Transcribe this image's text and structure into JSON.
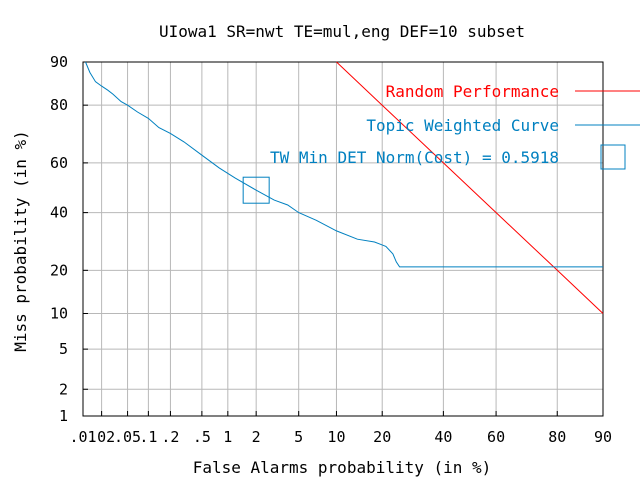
{
  "chart_data": {
    "type": "line",
    "title": "UIowa1 SR=nwt TE=mul,eng DEF=10 subset",
    "xlabel": "False Alarms probability (in %)",
    "ylabel": "Miss probability (in %)",
    "x_scale": "normal-deviate (probit)",
    "y_scale": "normal-deviate (probit)",
    "xlim": [
      0.01,
      90
    ],
    "ylim": [
      1,
      90
    ],
    "grid": true,
    "legend_position": "top-right, inside plot",
    "x_ticks": [
      {
        "value": 0.01,
        "label": ".01"
      },
      {
        "value": 0.02,
        "label": ".02"
      },
      {
        "value": 0.05,
        "label": ".05"
      },
      {
        "value": 0.1,
        "label": ".1"
      },
      {
        "value": 0.2,
        "label": ".2"
      },
      {
        "value": 0.5,
        "label": ".5"
      },
      {
        "value": 1,
        "label": "1"
      },
      {
        "value": 2,
        "label": "2"
      },
      {
        "value": 5,
        "label": "5"
      },
      {
        "value": 10,
        "label": "10"
      },
      {
        "value": 20,
        "label": "20"
      },
      {
        "value": 40,
        "label": "40"
      },
      {
        "value": 60,
        "label": "60"
      },
      {
        "value": 80,
        "label": "80"
      },
      {
        "value": 90,
        "label": "90"
      }
    ],
    "y_ticks": [
      {
        "value": 1,
        "label": "1"
      },
      {
        "value": 2,
        "label": "2"
      },
      {
        "value": 5,
        "label": "5"
      },
      {
        "value": 10,
        "label": "10"
      },
      {
        "value": 20,
        "label": "20"
      },
      {
        "value": 40,
        "label": "40"
      },
      {
        "value": 60,
        "label": "60"
      },
      {
        "value": 80,
        "label": "80"
      },
      {
        "value": 90,
        "label": "90"
      }
    ],
    "series": [
      {
        "name": "Random Performance",
        "color": "#ff0000",
        "points": [
          [
            10,
            90
          ],
          [
            20,
            80
          ],
          [
            40,
            60
          ],
          [
            60,
            40
          ],
          [
            80,
            20
          ],
          [
            90,
            10
          ]
        ]
      },
      {
        "name": "Topic Weighted Curve",
        "color": "#0080c0",
        "points": [
          [
            0.011,
            90
          ],
          [
            0.013,
            88
          ],
          [
            0.016,
            86
          ],
          [
            0.02,
            85
          ],
          [
            0.025,
            84
          ],
          [
            0.03,
            83
          ],
          [
            0.04,
            81
          ],
          [
            0.05,
            80
          ],
          [
            0.07,
            78
          ],
          [
            0.1,
            76
          ],
          [
            0.14,
            73
          ],
          [
            0.2,
            71
          ],
          [
            0.3,
            68
          ],
          [
            0.5,
            63
          ],
          [
            0.8,
            58
          ],
          [
            1.2,
            54
          ],
          [
            2,
            49
          ],
          [
            3,
            45
          ],
          [
            4,
            43
          ],
          [
            5,
            40
          ],
          [
            7,
            37
          ],
          [
            10,
            33
          ],
          [
            14,
            30
          ],
          [
            18,
            29
          ],
          [
            21,
            27.5
          ],
          [
            23,
            25
          ],
          [
            24,
            22.5
          ],
          [
            25,
            21
          ],
          [
            60,
            21
          ],
          [
            90,
            21
          ]
        ]
      }
    ],
    "min_det_point": {
      "label": "TW Min DET Norm(Cost) = 0.5918",
      "x": 2,
      "y": 49,
      "color": "#0080c0"
    },
    "legend": [
      {
        "label": "Random Performance",
        "color": "#ff0000"
      },
      {
        "label": "Topic Weighted Curve",
        "color": "#0080c0"
      },
      {
        "label": "TW Min DET Norm(Cost) = 0.5918",
        "color": "#0080c0",
        "marker": "square"
      }
    ]
  }
}
